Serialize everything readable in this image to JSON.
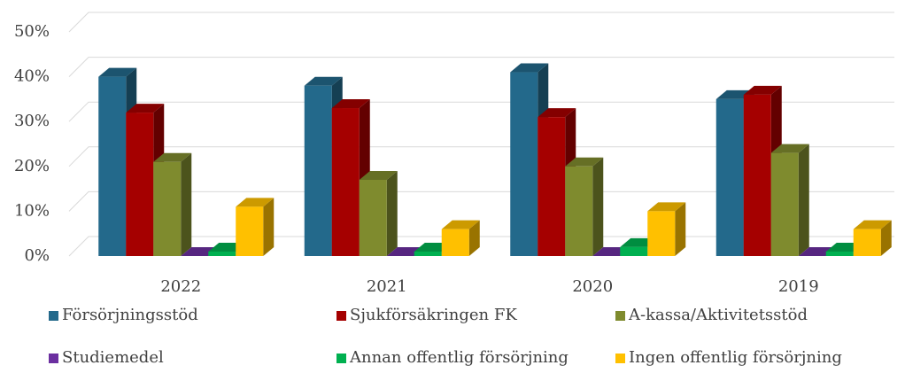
{
  "chart_data": {
    "type": "bar3d",
    "categories": [
      "2022",
      "2021",
      "2020",
      "2019"
    ],
    "series": [
      {
        "name": "Försörjningsstöd",
        "color": "#23698b",
        "values": [
          40,
          38,
          41,
          35
        ]
      },
      {
        "name": "Sjukförsäkringen FK",
        "color": "#a50000",
        "values": [
          32,
          33,
          31,
          36
        ]
      },
      {
        "name": "A-kassa/Aktivitetsstöd",
        "color": "#7f8b2e",
        "values": [
          21,
          17,
          20,
          23
        ]
      },
      {
        "name": "Studiemedel",
        "color": "#6b2fa0",
        "values": [
          0,
          0,
          0,
          0
        ]
      },
      {
        "name": "Annan offentlig försörjning",
        "color": "#00b050",
        "values": [
          1,
          1,
          2,
          1
        ]
      },
      {
        "name": "Ingen offentlig försörjning",
        "color": "#ffc000",
        "values": [
          11,
          6,
          10,
          6
        ]
      }
    ],
    "ylim": [
      0,
      50
    ],
    "yticks": [
      {
        "value": 0,
        "label": "0%"
      },
      {
        "value": 10,
        "label": "10%"
      },
      {
        "value": 20,
        "label": "20%"
      },
      {
        "value": 30,
        "label": "30%"
      },
      {
        "value": 40,
        "label": "40%"
      },
      {
        "value": 50,
        "label": "50%"
      }
    ],
    "grid": true,
    "legend": "bottom"
  }
}
